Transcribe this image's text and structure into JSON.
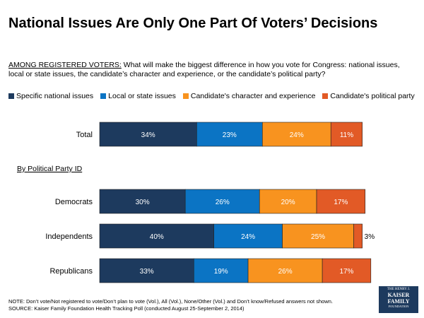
{
  "title": "National Issues Are Only One Part Of Voters’ Decisions",
  "question": {
    "lead": "AMONG REGISTERED VOTERS:",
    "text": "What will make the biggest difference in how you vote for Congress: national issues, local or state issues, the candidate’s character and experience, or the candidate’s political party?"
  },
  "subgroup_label": "By Political Party ID",
  "chart_data": {
    "type": "bar",
    "orientation": "horizontal",
    "stacked": true,
    "categories": [
      "Total",
      "Democrats",
      "Independents",
      "Republicans"
    ],
    "series": [
      {
        "name": "Specific national issues",
        "color": "#1d3a5e",
        "values": [
          34,
          30,
          40,
          33
        ],
        "labels": [
          "34%",
          "30%",
          "40%",
          "33%"
        ]
      },
      {
        "name": "Local or state issues",
        "color": "#0b74c4",
        "values": [
          23,
          26,
          24,
          19
        ],
        "labels": [
          "23%",
          "26%",
          "24%",
          "19%"
        ]
      },
      {
        "name": "Candidate's character and experience",
        "color": "#f8931f",
        "values": [
          24,
          20,
          25,
          26
        ],
        "labels": [
          "24%",
          "20%",
          "25%",
          "26%"
        ]
      },
      {
        "name": "Candidate's political party",
        "color": "#e25a26",
        "values": [
          11,
          17,
          3,
          17
        ],
        "labels": [
          "11%",
          "17%",
          "3%",
          "17%"
        ]
      }
    ],
    "xlim": [
      0,
      100
    ],
    "legend_position": "top"
  },
  "note": "NOTE: Don’t vote/Not registered to vote/Don’t plan to vote (Vol.), All (Vol.), None/Other (Vol.) and Don’t know/Refused answers not shown.",
  "source": "SOURCE: Kaiser Family Foundation Health Tracking Poll (conducted August 25-September 2, 2014)",
  "logo": {
    "top": "THE HENRY J.",
    "line1": "KAISER",
    "line2": "FAMILY",
    "bottom": "FOUNDATION"
  }
}
